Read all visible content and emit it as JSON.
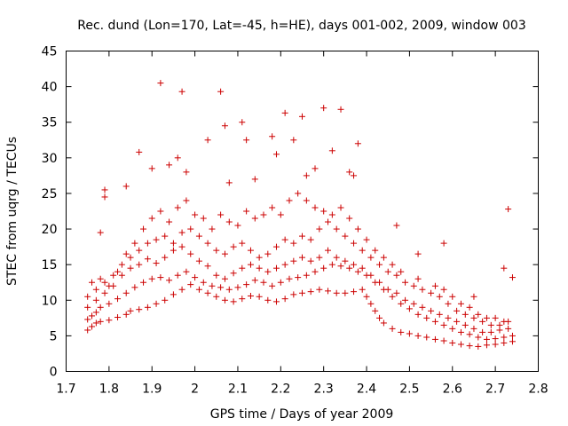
{
  "chart_data": {
    "type": "scatter",
    "title": "Rec. dund (Lon=170, Lat=-45, h=HE), days 001-002, 2009, window 003",
    "xlabel": "GPS time / Days of year 2009",
    "ylabel": "STEC from uqrg / TECUs",
    "xlim": [
      1.7,
      2.8
    ],
    "ylim": [
      0,
      45
    ],
    "xticks": [
      "1.7",
      "1.8",
      "1.9",
      "2",
      "2.1",
      "2.2",
      "2.3",
      "2.4",
      "2.5",
      "2.6",
      "2.7",
      "2.8"
    ],
    "yticks": [
      "0",
      "5",
      "10",
      "15",
      "20",
      "25",
      "30",
      "35",
      "40",
      "45"
    ],
    "grid": false,
    "marker": "plus",
    "color": "#cc0000",
    "series": [
      {
        "values": [
          [
            1.75,
            5.8
          ],
          [
            1.76,
            6.3
          ],
          [
            1.77,
            6.8
          ],
          [
            1.78,
            7.0
          ],
          [
            1.8,
            7.2
          ],
          [
            1.82,
            7.6
          ],
          [
            1.84,
            8.0
          ],
          [
            1.85,
            8.5
          ],
          [
            1.87,
            8.7
          ],
          [
            1.89,
            9.0
          ],
          [
            1.91,
            9.5
          ],
          [
            1.93,
            10.0
          ],
          [
            1.95,
            10.8
          ],
          [
            1.97,
            11.5
          ],
          [
            1.99,
            12.2
          ],
          [
            2.01,
            11.5
          ],
          [
            2.03,
            11.0
          ],
          [
            2.05,
            10.5
          ],
          [
            2.07,
            10.0
          ],
          [
            2.09,
            9.8
          ],
          [
            2.11,
            10.2
          ],
          [
            2.13,
            10.6
          ],
          [
            2.15,
            10.5
          ],
          [
            2.17,
            10.0
          ],
          [
            2.19,
            9.8
          ],
          [
            2.21,
            10.2
          ],
          [
            2.23,
            10.8
          ],
          [
            2.25,
            11.0
          ],
          [
            2.27,
            11.2
          ],
          [
            2.29,
            11.5
          ],
          [
            2.31,
            11.3
          ],
          [
            2.33,
            11.0
          ],
          [
            2.35,
            11.0
          ],
          [
            2.37,
            11.2
          ],
          [
            2.39,
            11.5
          ],
          [
            2.4,
            10.5
          ],
          [
            2.41,
            9.5
          ],
          [
            2.42,
            8.5
          ],
          [
            2.43,
            7.5
          ],
          [
            2.44,
            6.8
          ],
          [
            2.46,
            6.0
          ],
          [
            2.48,
            5.5
          ],
          [
            2.5,
            5.3
          ],
          [
            2.52,
            5.0
          ],
          [
            2.54,
            4.8
          ],
          [
            2.56,
            4.5
          ],
          [
            2.58,
            4.3
          ],
          [
            2.6,
            4.0
          ],
          [
            2.62,
            3.8
          ],
          [
            2.64,
            3.6
          ],
          [
            2.66,
            3.5
          ],
          [
            2.68,
            3.7
          ],
          [
            2.7,
            3.8
          ],
          [
            2.72,
            4.0
          ],
          [
            2.74,
            4.2
          ]
        ]
      },
      {
        "values": [
          [
            1.75,
            7.3
          ],
          [
            1.76,
            7.8
          ],
          [
            1.77,
            8.3
          ],
          [
            1.78,
            9.0
          ],
          [
            1.8,
            9.5
          ],
          [
            1.82,
            10.2
          ],
          [
            1.84,
            11.0
          ],
          [
            1.86,
            11.8
          ],
          [
            1.88,
            12.5
          ],
          [
            1.9,
            13.0
          ],
          [
            1.92,
            13.2
          ],
          [
            1.94,
            12.8
          ],
          [
            1.96,
            13.5
          ],
          [
            1.98,
            14.0
          ],
          [
            2.0,
            13.2
          ],
          [
            2.02,
            12.5
          ],
          [
            2.04,
            12.0
          ],
          [
            2.06,
            11.8
          ],
          [
            2.08,
            11.5
          ],
          [
            2.1,
            11.8
          ],
          [
            2.12,
            12.2
          ],
          [
            2.14,
            12.8
          ],
          [
            2.16,
            12.5
          ],
          [
            2.18,
            12.0
          ],
          [
            2.2,
            12.5
          ],
          [
            2.22,
            13.0
          ],
          [
            2.24,
            13.2
          ],
          [
            2.26,
            13.5
          ],
          [
            2.28,
            14.0
          ],
          [
            2.3,
            14.5
          ],
          [
            2.32,
            15.0
          ],
          [
            2.34,
            14.8
          ],
          [
            2.36,
            14.5
          ],
          [
            2.38,
            14.0
          ],
          [
            2.4,
            13.5
          ],
          [
            2.42,
            12.5
          ],
          [
            2.44,
            11.5
          ],
          [
            2.46,
            10.5
          ],
          [
            2.48,
            9.5
          ],
          [
            2.5,
            8.8
          ],
          [
            2.52,
            8.0
          ],
          [
            2.54,
            7.5
          ],
          [
            2.56,
            7.0
          ],
          [
            2.58,
            6.5
          ],
          [
            2.6,
            6.0
          ],
          [
            2.62,
            5.5
          ],
          [
            2.64,
            5.2
          ],
          [
            2.66,
            4.8
          ],
          [
            2.68,
            4.5
          ],
          [
            2.7,
            4.6
          ],
          [
            2.72,
            4.8
          ],
          [
            2.74,
            5.0
          ]
        ]
      },
      {
        "values": [
          [
            1.75,
            9.0
          ],
          [
            1.77,
            10.0
          ],
          [
            1.79,
            11.0
          ],
          [
            1.81,
            12.0
          ],
          [
            1.83,
            13.5
          ],
          [
            1.85,
            14.5
          ],
          [
            1.87,
            15.0
          ],
          [
            1.89,
            15.8
          ],
          [
            1.91,
            15.2
          ],
          [
            1.93,
            16.0
          ],
          [
            1.95,
            17.0
          ],
          [
            1.97,
            17.5
          ],
          [
            1.99,
            16.5
          ],
          [
            2.01,
            15.5
          ],
          [
            2.03,
            14.8
          ],
          [
            2.05,
            13.5
          ],
          [
            2.07,
            13.0
          ],
          [
            2.09,
            13.8
          ],
          [
            2.11,
            14.5
          ],
          [
            2.13,
            15.0
          ],
          [
            2.15,
            14.5
          ],
          [
            2.17,
            14.0
          ],
          [
            2.19,
            14.5
          ],
          [
            2.21,
            15.0
          ],
          [
            2.23,
            15.5
          ],
          [
            2.25,
            16.0
          ],
          [
            2.27,
            15.5
          ],
          [
            2.29,
            16.0
          ],
          [
            2.31,
            17.0
          ],
          [
            2.33,
            16.0
          ],
          [
            2.35,
            15.5
          ],
          [
            2.37,
            15.0
          ],
          [
            2.39,
            14.5
          ],
          [
            2.41,
            13.5
          ],
          [
            2.43,
            12.5
          ],
          [
            2.45,
            11.5
          ],
          [
            2.47,
            11.0
          ],
          [
            2.49,
            10.0
          ],
          [
            2.51,
            9.5
          ],
          [
            2.53,
            9.0
          ],
          [
            2.55,
            8.5
          ],
          [
            2.57,
            8.0
          ],
          [
            2.59,
            7.5
          ],
          [
            2.61,
            7.0
          ],
          [
            2.63,
            6.5
          ],
          [
            2.65,
            6.0
          ],
          [
            2.67,
            5.5
          ],
          [
            2.69,
            5.5
          ],
          [
            2.71,
            5.8
          ],
          [
            2.73,
            6.0
          ]
        ]
      },
      {
        "values": [
          [
            1.75,
            10.5
          ],
          [
            1.77,
            11.5
          ],
          [
            1.79,
            12.5
          ],
          [
            1.81,
            13.5
          ],
          [
            1.83,
            15.0
          ],
          [
            1.85,
            16.0
          ],
          [
            1.87,
            17.0
          ],
          [
            1.89,
            18.0
          ],
          [
            1.91,
            18.5
          ],
          [
            1.93,
            19.0
          ],
          [
            1.95,
            18.0
          ],
          [
            1.97,
            19.5
          ],
          [
            1.99,
            20.0
          ],
          [
            2.01,
            19.0
          ],
          [
            2.03,
            18.0
          ],
          [
            2.05,
            17.0
          ],
          [
            2.07,
            16.5
          ],
          [
            2.09,
            17.5
          ],
          [
            2.11,
            18.0
          ],
          [
            2.13,
            17.0
          ],
          [
            2.15,
            16.0
          ],
          [
            2.17,
            16.5
          ],
          [
            2.19,
            17.5
          ],
          [
            2.21,
            18.5
          ],
          [
            2.23,
            18.0
          ],
          [
            2.25,
            19.0
          ],
          [
            2.27,
            18.5
          ],
          [
            2.29,
            20.0
          ],
          [
            2.31,
            21.0
          ],
          [
            2.33,
            20.0
          ],
          [
            2.35,
            19.0
          ],
          [
            2.37,
            18.0
          ],
          [
            2.39,
            17.0
          ],
          [
            2.41,
            16.0
          ],
          [
            2.43,
            15.0
          ],
          [
            2.45,
            14.0
          ],
          [
            2.47,
            13.5
          ],
          [
            2.49,
            12.5
          ],
          [
            2.51,
            12.0
          ],
          [
            2.53,
            11.5
          ],
          [
            2.55,
            11.0
          ],
          [
            2.57,
            10.5
          ],
          [
            2.59,
            9.5
          ],
          [
            2.61,
            8.5
          ],
          [
            2.63,
            8.0
          ],
          [
            2.65,
            7.5
          ],
          [
            2.67,
            7.0
          ],
          [
            2.69,
            6.5
          ],
          [
            2.71,
            6.5
          ],
          [
            2.73,
            7.0
          ]
        ]
      },
      {
        "values": [
          [
            1.76,
            12.5
          ],
          [
            1.78,
            13.0
          ],
          [
            1.8,
            12.0
          ],
          [
            1.82,
            14.0
          ],
          [
            1.84,
            16.5
          ],
          [
            1.86,
            18.0
          ],
          [
            1.88,
            20.0
          ],
          [
            1.9,
            21.5
          ],
          [
            1.92,
            22.5
          ],
          [
            1.94,
            21.0
          ],
          [
            1.96,
            23.0
          ],
          [
            1.98,
            24.0
          ],
          [
            2.0,
            22.0
          ],
          [
            2.02,
            21.5
          ],
          [
            2.04,
            20.0
          ],
          [
            2.06,
            22.0
          ],
          [
            2.08,
            21.0
          ],
          [
            2.1,
            20.5
          ],
          [
            2.12,
            22.5
          ],
          [
            2.14,
            21.5
          ],
          [
            2.16,
            22.0
          ],
          [
            2.18,
            23.0
          ],
          [
            2.2,
            22.0
          ],
          [
            2.22,
            24.0
          ],
          [
            2.24,
            25.0
          ],
          [
            2.26,
            24.0
          ],
          [
            2.28,
            23.0
          ],
          [
            2.3,
            22.5
          ],
          [
            2.32,
            22.0
          ],
          [
            2.34,
            23.0
          ],
          [
            2.36,
            21.5
          ],
          [
            2.38,
            20.0
          ],
          [
            2.4,
            18.5
          ],
          [
            2.42,
            17.0
          ],
          [
            2.44,
            16.0
          ],
          [
            2.46,
            15.0
          ],
          [
            2.48,
            14.0
          ],
          [
            2.52,
            13.0
          ],
          [
            2.56,
            12.0
          ],
          [
            2.58,
            11.5
          ],
          [
            2.6,
            10.5
          ],
          [
            2.62,
            9.5
          ],
          [
            2.64,
            9.0
          ],
          [
            2.66,
            8.0
          ],
          [
            2.68,
            7.5
          ],
          [
            2.7,
            7.5
          ],
          [
            2.72,
            7.0
          ]
        ]
      },
      {
        "values": [
          [
            1.78,
            19.5
          ],
          [
            1.79,
            24.5
          ],
          [
            1.79,
            25.5
          ],
          [
            1.84,
            26.0
          ],
          [
            1.87,
            30.8
          ],
          [
            1.9,
            28.5
          ],
          [
            1.92,
            40.5
          ],
          [
            1.94,
            29.0
          ],
          [
            1.96,
            30.0
          ],
          [
            1.97,
            39.3
          ],
          [
            1.98,
            28.0
          ],
          [
            2.03,
            32.5
          ],
          [
            2.06,
            39.3
          ],
          [
            2.07,
            34.5
          ],
          [
            2.08,
            26.5
          ],
          [
            2.11,
            35.0
          ],
          [
            2.12,
            32.5
          ],
          [
            2.14,
            27.0
          ],
          [
            2.18,
            33.0
          ],
          [
            2.19,
            30.5
          ],
          [
            2.21,
            36.3
          ],
          [
            2.23,
            32.5
          ],
          [
            2.25,
            35.8
          ],
          [
            2.26,
            27.5
          ],
          [
            2.28,
            28.5
          ],
          [
            2.3,
            37.0
          ],
          [
            2.32,
            31.0
          ],
          [
            2.34,
            36.8
          ],
          [
            2.36,
            28.0
          ],
          [
            2.37,
            27.5
          ],
          [
            2.38,
            32.0
          ],
          [
            2.47,
            20.5
          ],
          [
            2.52,
            16.5
          ],
          [
            2.58,
            18.0
          ],
          [
            2.65,
            10.5
          ],
          [
            2.72,
            14.5
          ],
          [
            2.73,
            22.8
          ],
          [
            2.74,
            13.2
          ]
        ]
      }
    ]
  }
}
